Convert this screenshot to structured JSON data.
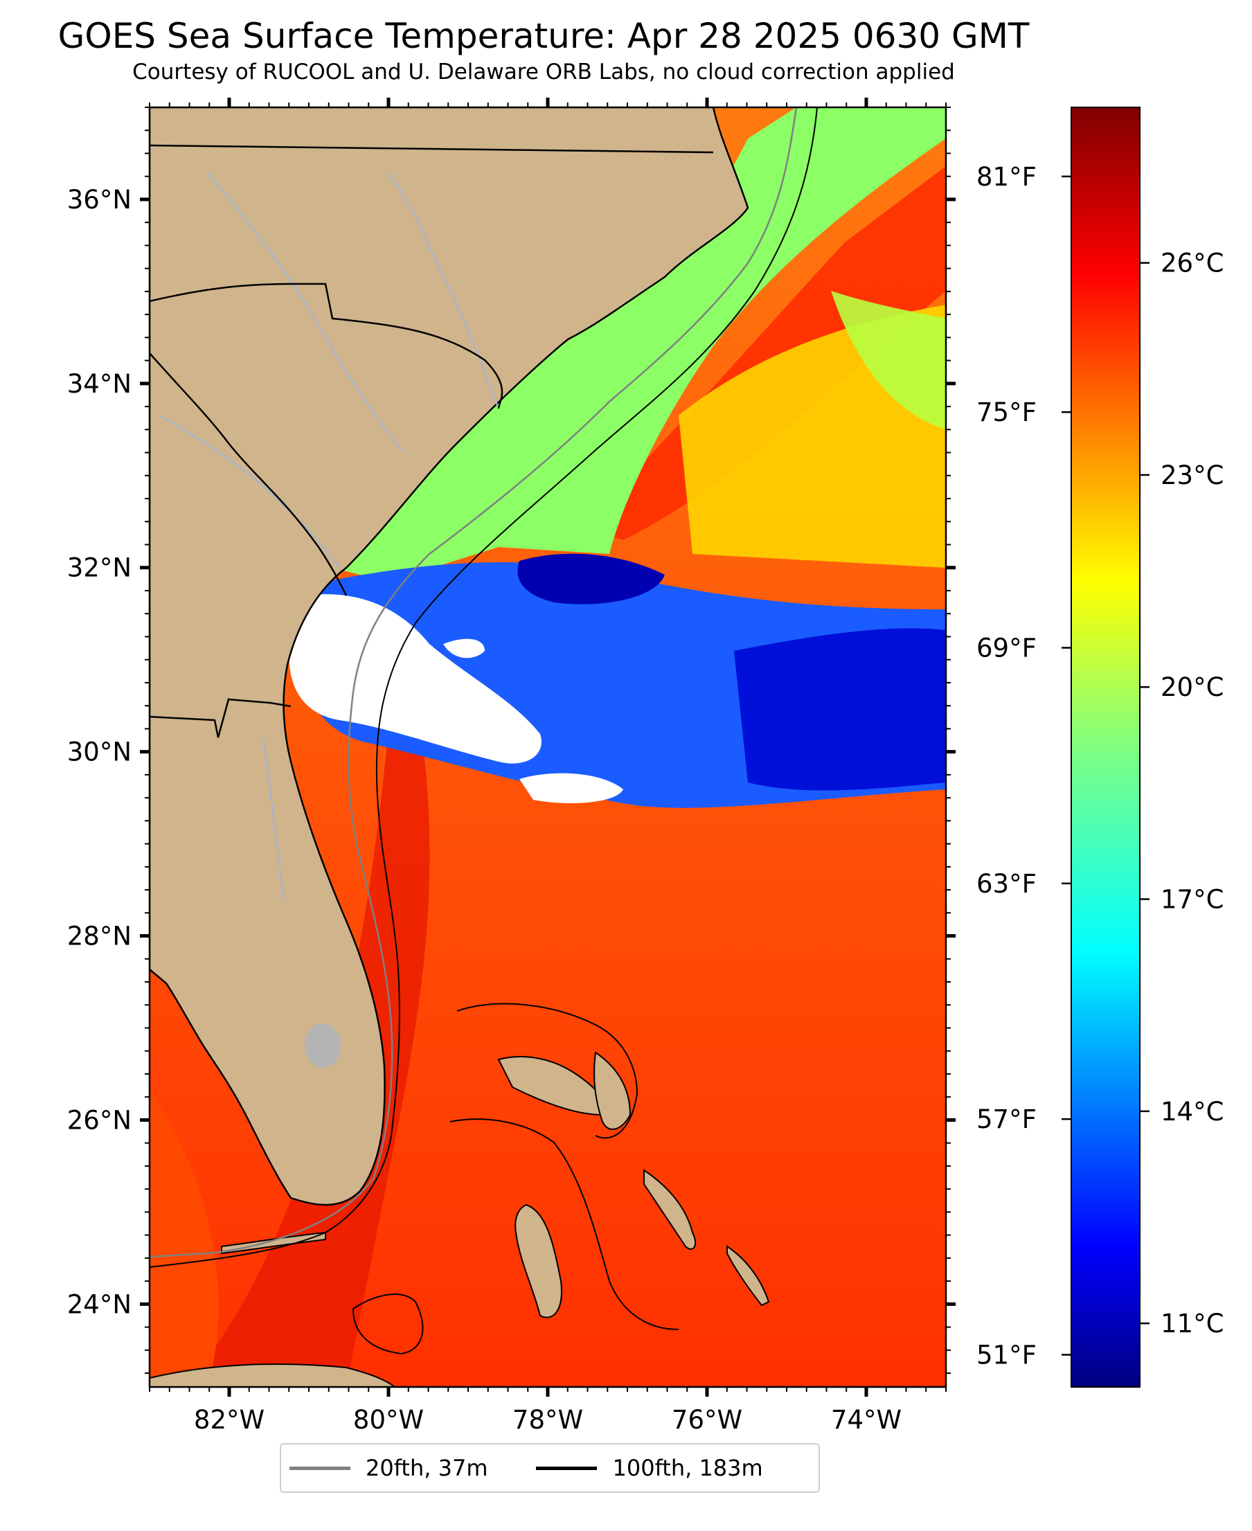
{
  "header": {
    "title": "GOES Sea Surface Temperature: Apr 28 2025 0630 GMT",
    "subtitle": "Courtesy of RUCOOL and U. Delaware ORB Labs, no cloud correction applied"
  },
  "map": {
    "lon_range": [
      -83,
      -73
    ],
    "lat_range": [
      23.1,
      37
    ],
    "lon_ticks": [
      {
        "value": -82,
        "label": "82°W"
      },
      {
        "value": -80,
        "label": "80°W"
      },
      {
        "value": -78,
        "label": "78°W"
      },
      {
        "value": -76,
        "label": "76°W"
      },
      {
        "value": -74,
        "label": "74°W"
      }
    ],
    "lat_ticks": [
      {
        "value": 24,
        "label": "24°N"
      },
      {
        "value": 26,
        "label": "26°N"
      },
      {
        "value": 28,
        "label": "28°N"
      },
      {
        "value": 30,
        "label": "30°N"
      },
      {
        "value": 32,
        "label": "32°N"
      },
      {
        "value": 34,
        "label": "34°N"
      },
      {
        "value": 36,
        "label": "36°N"
      }
    ],
    "land_color": "#d0b48c",
    "lake_color": "#b4b4b4",
    "river_color": "#9fb6d6",
    "no_data_color": "#ffffff"
  },
  "colorbar": {
    "colormap": "jet",
    "range_c": [
      10.1,
      28.2
    ],
    "celsius_ticks": [
      {
        "value": 11,
        "label": "11°C"
      },
      {
        "value": 14,
        "label": "14°C"
      },
      {
        "value": 17,
        "label": "17°C"
      },
      {
        "value": 20,
        "label": "20°C"
      },
      {
        "value": 23,
        "label": "23°C"
      },
      {
        "value": 26,
        "label": "26°C"
      }
    ],
    "fahrenheit_ticks": [
      {
        "value": 51,
        "label": "51°F"
      },
      {
        "value": 57,
        "label": "57°F"
      },
      {
        "value": 63,
        "label": "63°F"
      },
      {
        "value": 69,
        "label": "69°F"
      },
      {
        "value": 75,
        "label": "75°F"
      },
      {
        "value": 81,
        "label": "81°F"
      }
    ]
  },
  "legend": {
    "items": [
      {
        "label": "20fth, 37m",
        "color": "#808080"
      },
      {
        "label": "100fth, 183m",
        "color": "#000000"
      }
    ]
  }
}
